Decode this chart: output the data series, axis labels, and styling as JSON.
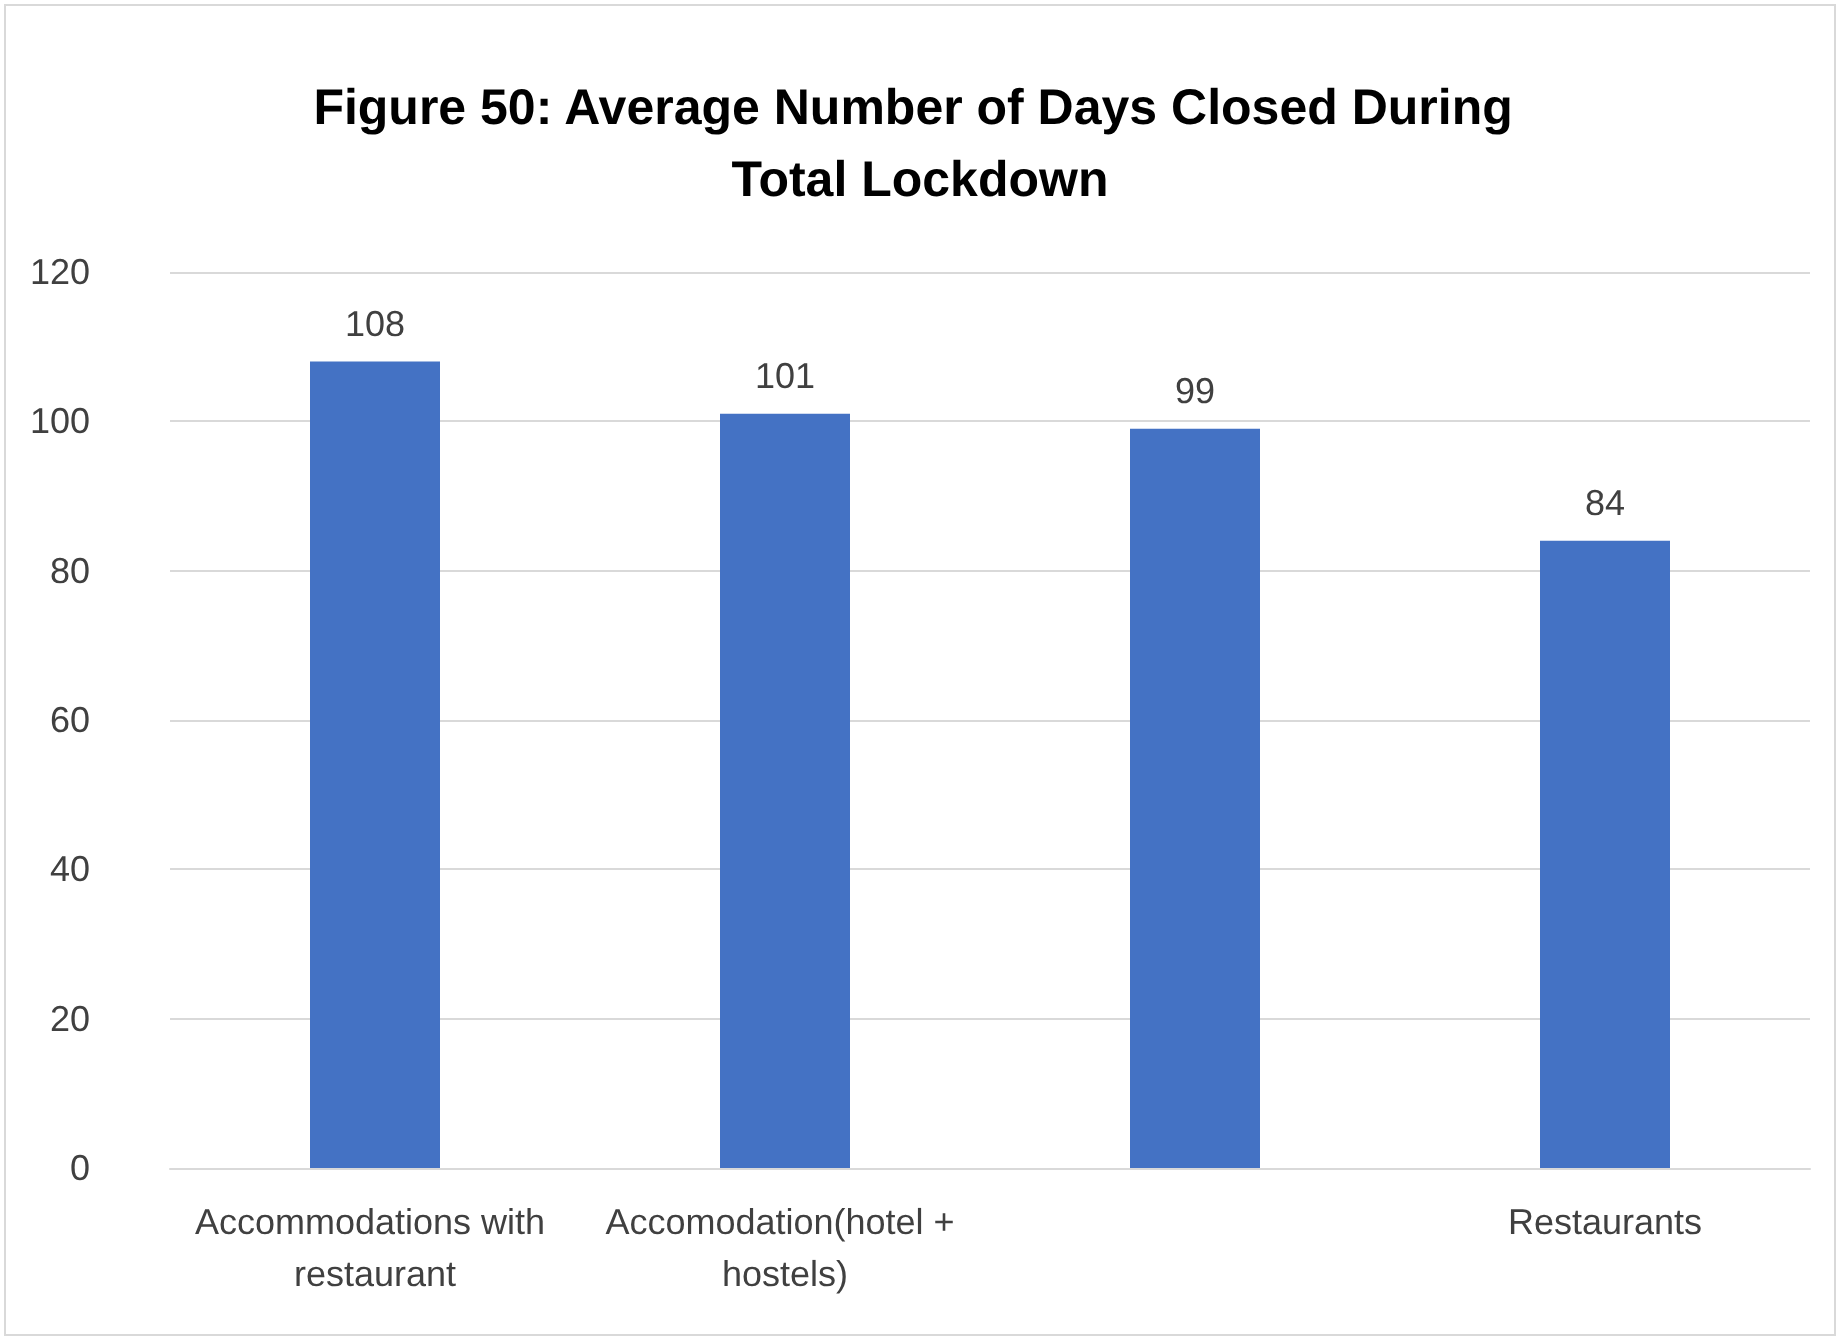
{
  "chart_data": {
    "type": "bar",
    "title": "Figure 50: Average Number of Days Closed During Total Lockdown",
    "categories": [
      "Accommodations with restaurant",
      "Accomodation(hotel + hostels)",
      null,
      "Restaurants"
    ],
    "values": [
      108,
      101,
      99,
      84
    ],
    "color": "#4472c4",
    "ylim": [
      0,
      120
    ],
    "yticks": [
      0,
      20,
      40,
      60,
      80,
      100,
      120
    ],
    "grid": "y",
    "data_labels": true
  }
}
